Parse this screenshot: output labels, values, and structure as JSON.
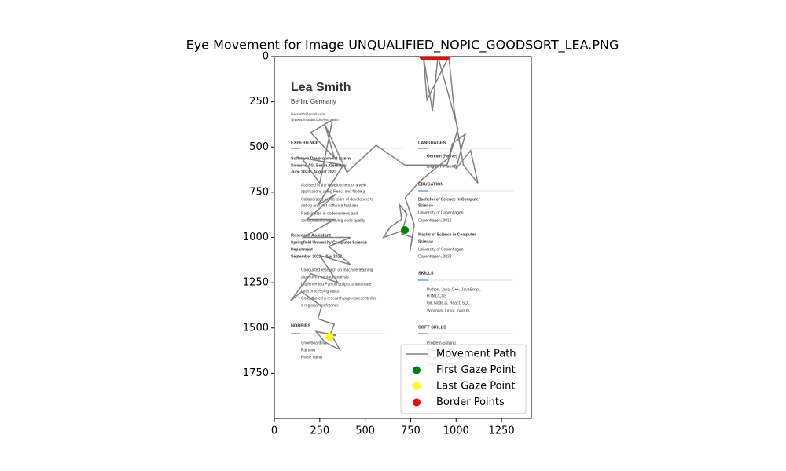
{
  "chart_data": {
    "type": "line",
    "title": "Eye Movement for Image UNQUALIFIED_NOPIC_GOODSORT_LEA.PNG",
    "xlim": [
      0,
      1414
    ],
    "ylim": [
      2000,
      0
    ],
    "xticks": [
      0,
      250,
      500,
      750,
      1000,
      1250
    ],
    "yticks": [
      0,
      250,
      500,
      750,
      1000,
      1250,
      1500,
      1750
    ],
    "legend": "lower right",
    "image_text": [
      "Lea Smith",
      "Berlin, Germany",
      "lea.smith@gmail.com",
      "@www.linkedin.com/lea_smith",
      "EXPERIENCE",
      "Software Development Intern",
      "Siemens AG, Berlin, Germany",
      "June 2023 - August 2023",
      "Assisted in the development of a web",
      "applications using React and Node.js",
      "Collaborated with a team of developers to",
      "debug and test software features",
      "Participated in code reviews and",
      "contributed to improving code quality",
      "Research Assistant",
      "Springfield University Computer Science",
      "Department",
      "September 2022 - May 2023",
      "Conducted research on machine learning",
      "algorithms for data analysis",
      "Implemented Python scripts to automate",
      "data processing tasks",
      "Co-authored a research paper presented at",
      "a regional conference",
      "HOBBIES",
      "Snowboarding",
      "Painting",
      "Horse riding",
      "LANGUAGES",
      "German (Native)",
      "English (Fluent)",
      "EDUCATION",
      "Bachelor of Science in Computer",
      "Science",
      "University of Copenhagen",
      "Copenhagen, 2018",
      "Master of Science in Computer",
      "Science",
      "University of Copenhagen",
      "Copenhagen, 2023",
      "SKILLS",
      "Python, Java, C++, JavaScript,",
      "HTML/CSS",
      "Git, Node.js, React, SQL",
      "Windows, Linux, macOS",
      "SOFT SKILLS",
      "Problem-Solving",
      "Detail-Oriented",
      "Verbal Communication",
      "Team Collaboration"
    ],
    "series": [
      {
        "name": "Movement Path",
        "kind": "line",
        "color": "gray",
        "x": [
          718,
          600,
          640,
          700,
          690,
          730,
          700,
          760,
          745,
          770,
          720,
          800,
          860,
          960,
          980,
          1050,
          1000,
          1080,
          1120,
          1040,
          990,
          960,
          840,
          820,
          870,
          900,
          1010,
          950,
          718,
          560,
          400,
          280,
          330,
          200,
          320,
          250,
          150,
          380,
          240,
          340,
          180,
          330,
          160,
          420,
          300,
          420,
          250,
          350,
          200,
          90,
          150,
          260,
          240,
          330,
          310,
          360,
          280,
          230,
          340,
          305
        ],
        "values": [
          959,
          1000,
          940,
          900,
          820,
          870,
          980,
          1000,
          1080,
          930,
          780,
          690,
          640,
          560,
          480,
          430,
          620,
          520,
          700,
          600,
          300,
          0,
          240,
          0,
          300,
          0,
          400,
          600,
          600,
          490,
          640,
          380,
          560,
          420,
          350,
          700,
          560,
          600,
          820,
          760,
          900,
          900,
          1000,
          1000,
          1050,
          1150,
          1100,
          1250,
          1200,
          1350,
          1300,
          1380,
          1450,
          1480,
          1530,
          1620,
          1580,
          1520,
          1540,
          1550
        ]
      },
      {
        "name": "First Gaze Point",
        "kind": "scatter",
        "color": "green",
        "x": [
          718
        ],
        "values": [
          959
        ]
      },
      {
        "name": "Last Gaze Point",
        "kind": "scatter",
        "color": "yellow",
        "x": [
          305
        ],
        "values": [
          1550
        ]
      },
      {
        "name": "Border Points",
        "kind": "scatter",
        "color": "red",
        "x": [
          820,
          850,
          880,
          905,
          925,
          945
        ],
        "values": [
          0,
          0,
          0,
          0,
          0,
          0
        ]
      }
    ]
  }
}
